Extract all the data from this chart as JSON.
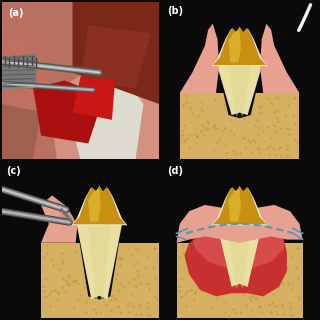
{
  "bg_color": "#0a0a0a",
  "panel_labels": [
    "(a)",
    "(b)",
    "(c)",
    "(d)"
  ],
  "label_color": "#ffffff",
  "label_fontsize": 7,
  "tooth_yellow_dark": "#c89010",
  "tooth_yellow_mid": "#d4a020",
  "tooth_yellow_light": "#e8c840",
  "tooth_white": "#f0ede0",
  "tooth_cream": "#e8dfa0",
  "tooth_root_cream": "#e0d890",
  "gum_pink_light": "#f0b0a0",
  "gum_pink": "#e8a090",
  "gum_pink_dark": "#d08878",
  "bone_yellow": "#d4b060",
  "bone_dot": "#c09840",
  "blood_red": "#cc2020",
  "gran_red": "#c83030",
  "gran_pink": "#e06060",
  "suture_blue": "#5098c0",
  "instr_light": "#c8c8c8",
  "instr_mid": "#909090",
  "instr_dark": "#606060",
  "divider": "#2a2a2a"
}
